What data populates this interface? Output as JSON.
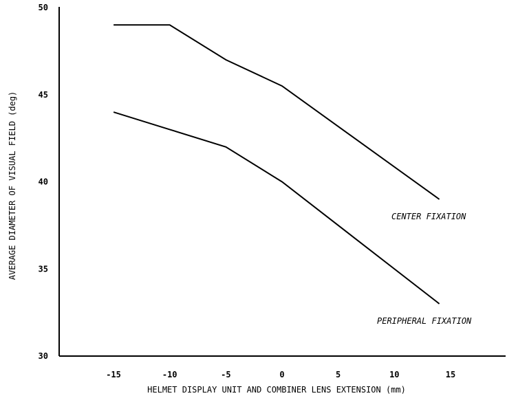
{
  "chart_data": {
    "type": "line",
    "title": "",
    "xlabel": "HELMET DISPLAY UNIT AND COMBINER LENS EXTENSION (mm)",
    "ylabel": "AVERAGE DIAMETER OF VISUAL FIELD (deg)",
    "x_ticks": [
      -15,
      -10,
      -5,
      0,
      5,
      10,
      15
    ],
    "x_tick_labels": [
      "-15",
      "-10",
      "-5",
      "0",
      "5",
      "10",
      "15"
    ],
    "y_ticks": [
      30,
      35,
      40,
      45,
      50
    ],
    "y_tick_labels": [
      "30",
      "35",
      "40",
      "45",
      "50"
    ],
    "xlim": [
      -20,
      20
    ],
    "ylim": [
      30,
      50
    ],
    "grid": false,
    "legend": "none (series labelled directly at right)",
    "series": [
      {
        "name": "CENTER FIXATION",
        "x": [
          -15,
          -10,
          -5,
          0,
          14
        ],
        "y": [
          49,
          49,
          47,
          45.5,
          39
        ]
      },
      {
        "name": "PERIPHERAL FIXATION",
        "x": [
          -15,
          -10,
          -5,
          0,
          14
        ],
        "y": [
          44,
          43,
          42,
          40,
          33
        ]
      }
    ],
    "colors": {
      "line": "#000000",
      "background": "#ffffff"
    }
  }
}
